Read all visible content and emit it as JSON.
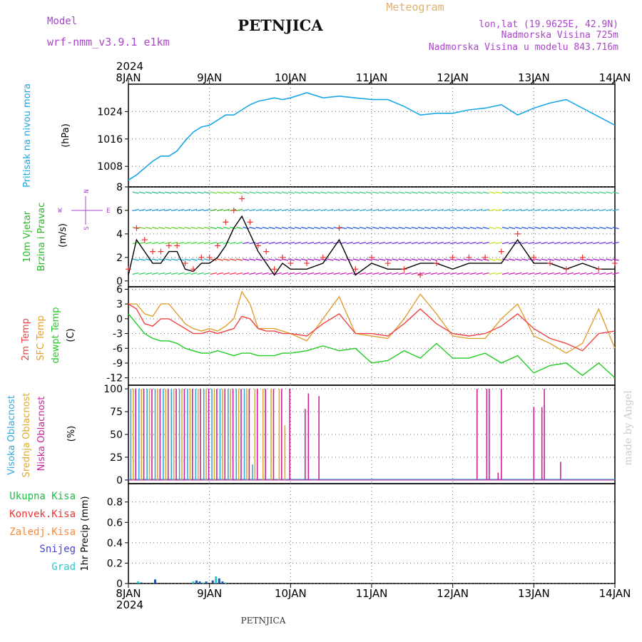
{
  "header": {
    "model_label": "Model",
    "model_name": "wrf-nmm_v3.9.1  e1km",
    "station": "PETNJICA",
    "meteogram": "Meteogram",
    "lonlat": "lon,lat (19.9625E, 42.9N)",
    "elevation": "Nadmorska Visina 725m",
    "model_elevation": "Nadmorska Visina u modelu 843.716m"
  },
  "footer": {
    "station": "PETNJICA",
    "watermark": "made by Angel"
  },
  "colors": {
    "pressure": "#1aa7e8",
    "wind_label": "#22bb22",
    "wind_units": "#aa44cc",
    "temp2m": "#ee4444",
    "sfc": "#e0a030",
    "dewpt": "#22cc22",
    "cloud_high": "#33aadd",
    "cloud_mid": "#ddaa33",
    "cloud_low": "#cc2299",
    "rain_total": "#22bb44",
    "rain_conv": "#ee3333",
    "rain_frz": "#ff8833",
    "snow": "#4444dd",
    "hail": "#22cccc",
    "grid": "#666666"
  },
  "chart_data": [
    {
      "type": "line",
      "panel": "pressure",
      "ylabel_a": "Pritisak na nivou mora",
      "ylabel_b": "(hPa)",
      "year": "2024",
      "x_ticks": [
        "8JAN",
        "9JAN",
        "10JAN",
        "11JAN",
        "12JAN",
        "13JAN",
        "14JAN"
      ],
      "ylim": [
        1002,
        1032
      ],
      "y_ticks": [
        1008,
        1016,
        1024
      ],
      "grid": true,
      "series": [
        {
          "x": [
            0,
            0.1,
            0.2,
            0.3,
            0.4,
            0.5,
            0.6,
            0.7,
            0.8,
            0.9,
            1.0,
            1.1,
            1.2,
            1.3,
            1.4,
            1.5,
            1.6,
            1.7,
            1.8,
            1.9,
            2.0,
            2.2,
            2.4,
            2.6,
            2.8,
            3.0,
            3.2,
            3.4,
            3.6,
            3.8,
            4.0,
            4.2,
            4.4,
            4.6,
            4.8,
            5.0,
            5.2,
            5.4,
            5.6,
            5.8,
            6.0
          ],
          "values": [
            1004,
            1005.5,
            1007.5,
            1009.5,
            1011,
            1011,
            1012.5,
            1015.5,
            1018,
            1019.5,
            1020,
            1021.5,
            1023,
            1023,
            1024.5,
            1026,
            1027,
            1027.5,
            1028,
            1027.5,
            1028,
            1029.5,
            1028,
            1028.5,
            1028,
            1027.5,
            1027.5,
            1025.5,
            1023,
            1023.5,
            1023.5,
            1024.5,
            1025,
            1026,
            1023,
            1025,
            1026.5,
            1027.5,
            1025,
            1022.5,
            1020
          ]
        }
      ]
    },
    {
      "type": "line",
      "panel": "wind",
      "ylabel_a": "10m Vjetar",
      "ylabel_b": "Brzina i Pravac",
      "ylabel_c": "(m/s)",
      "compass": {
        "w": "W",
        "e": "E",
        "n": "N",
        "s": "S"
      },
      "ylim": [
        -0.5,
        8
      ],
      "y_ticks": [
        0,
        2,
        4,
        6,
        8
      ],
      "grid": true,
      "series": [
        {
          "name": "speed",
          "x": [
            0,
            0.1,
            0.2,
            0.3,
            0.4,
            0.5,
            0.6,
            0.7,
            0.8,
            0.9,
            1.0,
            1.1,
            1.2,
            1.3,
            1.4,
            1.5,
            1.6,
            1.7,
            1.8,
            1.9,
            2.0,
            2.2,
            2.4,
            2.6,
            2.8,
            3.0,
            3.2,
            3.4,
            3.6,
            3.8,
            4.0,
            4.2,
            4.4,
            4.6,
            4.8,
            5.0,
            5.2,
            5.4,
            5.6,
            5.8,
            6.0
          ],
          "values": [
            0.5,
            3.5,
            2.5,
            1.5,
            1.5,
            2.5,
            2.5,
            1.0,
            0.8,
            1.5,
            1.5,
            2.0,
            3.0,
            4.5,
            5.5,
            4.0,
            2.5,
            1.5,
            0.5,
            1.5,
            1.0,
            1.0,
            1.5,
            3.5,
            0.5,
            1.5,
            1.0,
            1.0,
            1.5,
            1.5,
            1.0,
            1.5,
            1.5,
            1.5,
            3.5,
            1.5,
            1.5,
            1.0,
            1.5,
            1.0,
            1.0
          ]
        },
        {
          "name": "gust",
          "x": [
            0,
            0.1,
            0.2,
            0.3,
            0.4,
            0.5,
            0.6,
            0.7,
            0.8,
            0.9,
            1.0,
            1.1,
            1.2,
            1.3,
            1.4,
            1.5,
            1.6,
            1.7,
            1.8,
            1.9,
            2.0,
            2.2,
            2.4,
            2.6,
            2.8,
            3.0,
            3.2,
            3.4,
            3.6,
            3.8,
            4.0,
            4.2,
            4.4,
            4.6,
            4.8,
            5.0,
            5.2,
            5.4,
            5.6,
            5.8,
            6.0
          ],
          "values": [
            1.0,
            4.5,
            3.5,
            2.5,
            2.5,
            3.0,
            3.0,
            1.5,
            1.0,
            2.0,
            2.0,
            3.0,
            5.0,
            6.0,
            7.0,
            5.0,
            3.0,
            2.5,
            1.0,
            2.0,
            1.5,
            1.5,
            2.0,
            4.5,
            1.0,
            2.0,
            1.5,
            1.0,
            0.5,
            1.5,
            2.0,
            2.0,
            2.0,
            2.5,
            4.0,
            2.0,
            1.5,
            1.0,
            2.0,
            1.0,
            1.5
          ]
        }
      ]
    },
    {
      "type": "line",
      "panel": "temperature",
      "ylabel_a": "2m Temp",
      "ylabel_b": "SFC Temp",
      "ylabel_c": "dewpt Temp",
      "ylabel_d": "(C)",
      "ylim": [
        -13.5,
        6.5
      ],
      "y_ticks": [
        6,
        3,
        0,
        -3,
        -6,
        -9,
        -12
      ],
      "grid": true,
      "series": [
        {
          "name": "2m Temp",
          "x": [
            0,
            0.1,
            0.2,
            0.3,
            0.4,
            0.5,
            0.6,
            0.7,
            0.8,
            0.9,
            1.0,
            1.1,
            1.2,
            1.3,
            1.4,
            1.5,
            1.6,
            1.7,
            1.8,
            1.9,
            2.0,
            2.2,
            2.4,
            2.6,
            2.8,
            3.0,
            3.2,
            3.4,
            3.6,
            3.8,
            4.0,
            4.2,
            4.4,
            4.6,
            4.8,
            5.0,
            5.2,
            5.4,
            5.6,
            5.8,
            6.0
          ],
          "values": [
            3,
            2,
            -1,
            -1.5,
            0,
            0,
            -1,
            -2,
            -3,
            -3,
            -2.5,
            -3,
            -2.5,
            -2,
            0.5,
            0,
            -2,
            -2.5,
            -2.5,
            -3,
            -3,
            -3.5,
            -1,
            1,
            -3,
            -3,
            -3.5,
            -1,
            2,
            -1,
            -3,
            -3.5,
            -3,
            -1.5,
            1,
            -2,
            -4,
            -5,
            -6.5,
            -3,
            -2.5
          ]
        },
        {
          "name": "SFC Temp",
          "x": [
            0,
            0.1,
            0.2,
            0.3,
            0.4,
            0.5,
            0.6,
            0.7,
            0.8,
            0.9,
            1.0,
            1.1,
            1.2,
            1.3,
            1.4,
            1.5,
            1.6,
            1.7,
            1.8,
            1.9,
            2.0,
            2.2,
            2.4,
            2.6,
            2.8,
            3.0,
            3.2,
            3.4,
            3.6,
            3.8,
            4.0,
            4.2,
            4.4,
            4.6,
            4.8,
            5.0,
            5.2,
            5.4,
            5.6,
            5.8,
            6.0
          ],
          "values": [
            3,
            3,
            1,
            0.5,
            3,
            3,
            1,
            -1,
            -2,
            -2.5,
            -2,
            -2.5,
            -1.5,
            0,
            5.5,
            3,
            -2,
            -2,
            -2,
            -2.5,
            -3,
            -4.5,
            0,
            4.5,
            -3,
            -3.5,
            -4,
            0,
            5,
            1,
            -3.5,
            -4,
            -4,
            0,
            3,
            -3.5,
            -5,
            -7,
            -5,
            2,
            -6
          ]
        },
        {
          "name": "dewpt Temp",
          "x": [
            0,
            0.1,
            0.2,
            0.3,
            0.4,
            0.5,
            0.6,
            0.7,
            0.8,
            0.9,
            1.0,
            1.1,
            1.2,
            1.3,
            1.4,
            1.5,
            1.6,
            1.7,
            1.8,
            1.9,
            2.0,
            2.2,
            2.4,
            2.6,
            2.8,
            3.0,
            3.2,
            3.4,
            3.6,
            3.8,
            4.0,
            4.2,
            4.4,
            4.6,
            4.8,
            5.0,
            5.2,
            5.4,
            5.6,
            5.8,
            6.0
          ],
          "values": [
            1,
            -1,
            -3,
            -4,
            -4.5,
            -4.5,
            -5,
            -6,
            -6.5,
            -7,
            -7,
            -6.5,
            -7,
            -7.5,
            -7,
            -7,
            -7.5,
            -7.5,
            -7.5,
            -7,
            -7,
            -6.5,
            -5.5,
            -6.5,
            -6,
            -9,
            -8.5,
            -6.5,
            -8,
            -5,
            -8,
            -8,
            -7,
            -9,
            -7.5,
            -11,
            -9.5,
            -9,
            -11.5,
            -9,
            -12
          ]
        }
      ]
    },
    {
      "type": "bar",
      "panel": "clouds",
      "ylabel_a": "Visoka Oblacnost",
      "ylabel_b": "Srednja Oblacnost",
      "ylabel_c": "Niska Oblacnost",
      "ylabel_d": "(%)",
      "ylim": [
        -4,
        104
      ],
      "y_ticks": [
        0,
        25,
        50,
        75,
        100
      ],
      "grid": true,
      "high_x": [
        0.03,
        0.13,
        0.23,
        0.33,
        0.43,
        0.53,
        0.63,
        0.73,
        0.83,
        0.93,
        1.03,
        1.13,
        1.23,
        1.33,
        1.43,
        1.53,
        1.63,
        1.73
      ],
      "high_values": [
        100,
        100,
        100,
        100,
        100,
        100,
        100,
        100,
        100,
        100,
        100,
        100,
        100,
        100,
        100,
        17,
        0,
        0
      ],
      "mid_x": [
        0.06,
        0.16,
        0.26,
        0.36,
        0.46,
        0.56,
        0.66,
        0.76,
        0.86,
        0.96,
        1.06,
        1.16,
        1.26,
        1.36,
        1.46,
        1.56,
        1.66,
        1.76,
        1.86,
        1.93
      ],
      "mid_values": [
        100,
        100,
        100,
        100,
        100,
        100,
        100,
        100,
        100,
        100,
        100,
        100,
        100,
        100,
        100,
        100,
        100,
        100,
        100,
        60
      ],
      "low_x": [
        0.09,
        0.19,
        0.29,
        0.39,
        0.49,
        0.59,
        0.69,
        0.79,
        0.89,
        0.99,
        1.09,
        1.19,
        1.29,
        1.39,
        1.49,
        1.59,
        1.69,
        1.79,
        1.89,
        1.99,
        2.18,
        2.22,
        2.35,
        4.3,
        4.42,
        4.45,
        4.56,
        4.6,
        5.0,
        5.1,
        5.13,
        5.33
      ],
      "low_values": [
        100,
        100,
        100,
        100,
        100,
        100,
        100,
        100,
        100,
        100,
        100,
        100,
        100,
        100,
        100,
        100,
        100,
        100,
        100,
        100,
        78,
        95,
        92,
        100,
        100,
        100,
        8,
        100,
        80,
        80,
        100,
        20
      ]
    },
    {
      "type": "bar",
      "panel": "precipitation",
      "legend": [
        "Ukupna  Kisa",
        "Konvek.Kisa",
        "Zaledj.Kisa",
        "Snijeg",
        "Grad"
      ],
      "ylabel_a": "1hr Precip (mm)",
      "year": "2024",
      "x_ticks": [
        "8JAN",
        "9JAN",
        "10JAN",
        "11JAN",
        "12JAN",
        "13JAN",
        "14JAN"
      ],
      "ylim": [
        0,
        0.98
      ],
      "y_ticks": [
        0,
        0.2,
        0.4,
        0.6,
        0.8
      ],
      "grid": true,
      "x": [
        0.12,
        0.16,
        0.33,
        0.8,
        0.84,
        0.88,
        0.92,
        0.96,
        1.04,
        1.08,
        1.12,
        1.16,
        1.2
      ],
      "values": [
        0.02,
        0.01,
        0.04,
        0.02,
        0.03,
        0.02,
        0.01,
        0.02,
        0.03,
        0.07,
        0.05,
        0.02,
        0.01
      ]
    }
  ]
}
